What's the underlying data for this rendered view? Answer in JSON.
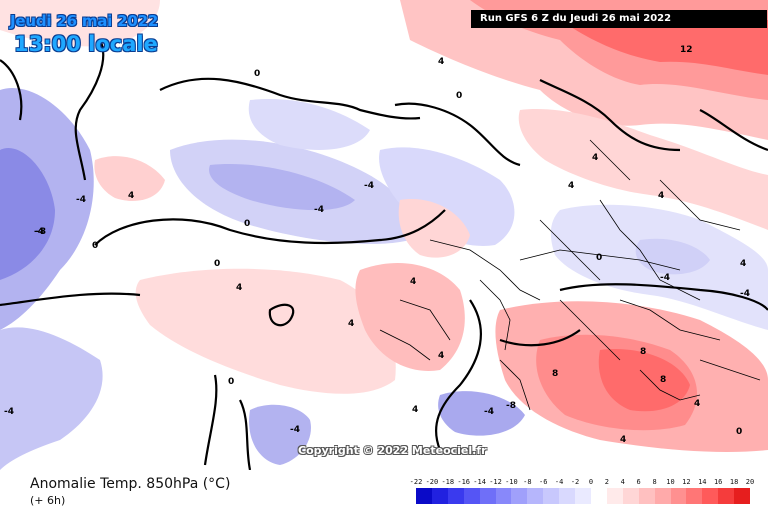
{
  "header": {
    "date": "Jeudi 26 mai 2022",
    "local_time": "13:00 locale",
    "run": "Run GFS 6 Z du Jeudi 26 mai 2022"
  },
  "copyright": "Copyright © 2022 Meteociel.fr",
  "footer": {
    "title": "Anomalie Temp. 850hPa (°C)",
    "subtitle": "(+ 6h)"
  },
  "legend": {
    "ticks": [
      "-22",
      "-20",
      "-18",
      "-16",
      "-14",
      "-12",
      "-10",
      "-8",
      "-6",
      "-4",
      "-2",
      "0",
      "2",
      "4",
      "6",
      "8",
      "10",
      "12",
      "14",
      "16",
      "18",
      "20"
    ],
    "colors": [
      "#0a0ac8",
      "#2121e0",
      "#3a3aee",
      "#5555f5",
      "#6f6ff8",
      "#8888fa",
      "#a0a0fb",
      "#b6b6fc",
      "#c8c8fd",
      "#d9d9fe",
      "#eaeaff",
      "#ffffff",
      "#ffeaea",
      "#ffd6d6",
      "#ffc0c0",
      "#ffaaaa",
      "#ff9090",
      "#ff7676",
      "#ff5a5a",
      "#f53c3c",
      "#e61e1e"
    ]
  },
  "map_labels": [
    "12",
    "4",
    "0",
    "0",
    "0",
    "0",
    "0",
    "-4",
    "-4",
    "-4",
    "-4",
    "4",
    "4",
    "4",
    "4",
    "4",
    "4",
    "-4",
    "-8",
    "8",
    "8",
    "8",
    "4",
    "4",
    "-4",
    "0",
    "-4",
    "-8",
    "4",
    "-4",
    "4",
    "0",
    "4",
    "0",
    "4",
    "-4"
  ],
  "colors": {
    "ocean_neutral": "#ffffff",
    "warm_light": "#ffd9d9",
    "warm_mid": "#ffb3b3",
    "warm_strong": "#ff6b6b",
    "cold_light": "#dcdcfa",
    "cold_mid": "#b3b3f0",
    "cold_strong": "#8a8ae6",
    "title_blue": "#1e90ff"
  }
}
